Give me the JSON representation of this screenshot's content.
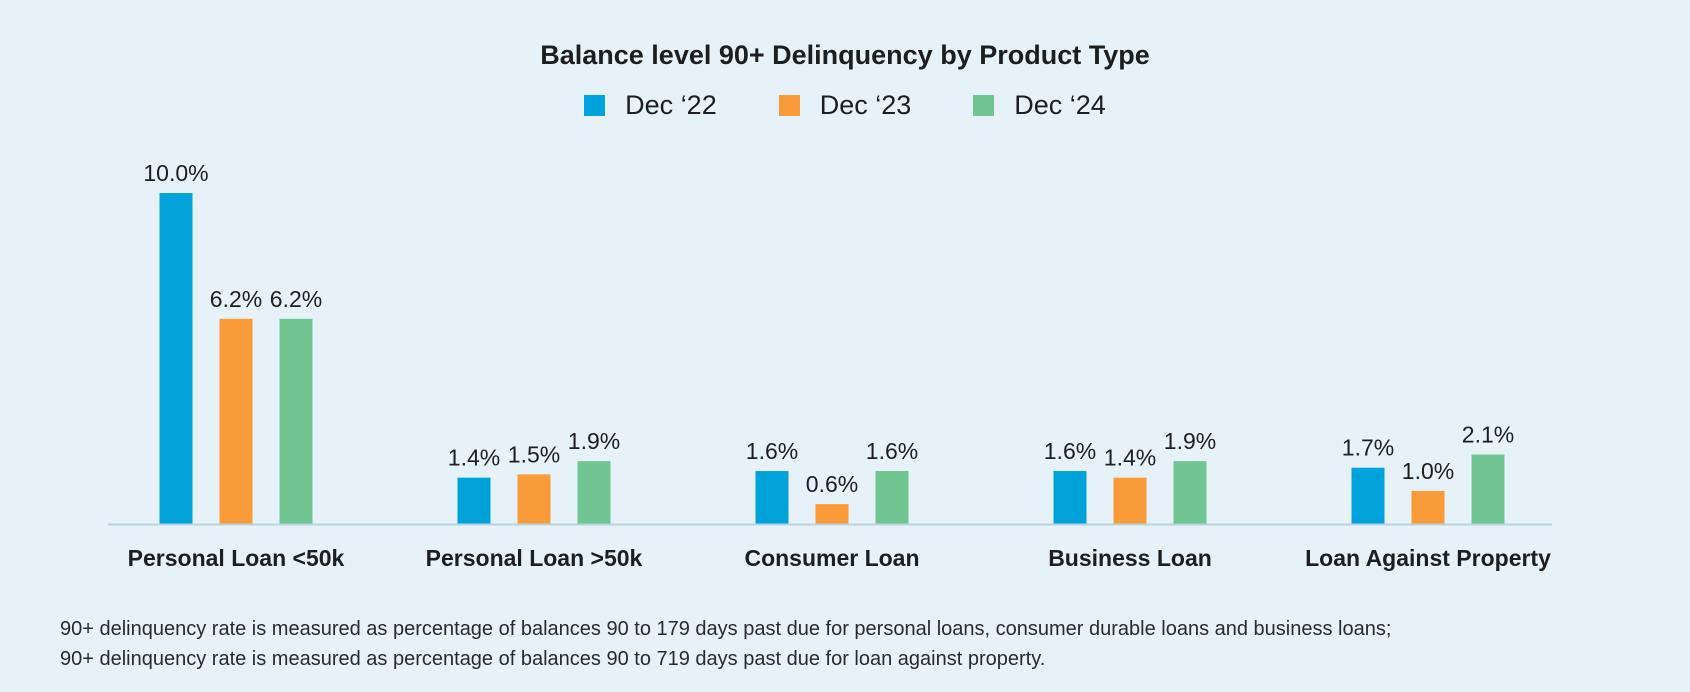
{
  "chart_data": {
    "type": "bar",
    "title": "Balance level 90+ Delinquency by Product Type",
    "xlabel": "",
    "ylabel": "",
    "ylim": [
      0,
      10.0
    ],
    "legend_position": "top-center",
    "grid": false,
    "categories": [
      "Personal Loan <50k",
      "Personal Loan >50k",
      "Consumer Loan",
      "Business Loan",
      "Loan Against Property"
    ],
    "series": [
      {
        "name": "Dec ‘22",
        "color": "#00a3d9",
        "values": [
          10.0,
          1.4,
          1.6,
          1.6,
          1.7
        ],
        "labels": [
          "10.0%",
          "1.4%",
          "1.6%",
          "1.6%",
          "1.7%"
        ]
      },
      {
        "name": "Dec ‘23",
        "color": "#f99b38",
        "values": [
          6.2,
          1.5,
          0.6,
          1.4,
          1.0
        ],
        "labels": [
          "6.2%",
          "1.5%",
          "0.6%",
          "1.4%",
          "1.0%"
        ]
      },
      {
        "name": "Dec ‘24",
        "color": "#70c592",
        "values": [
          6.2,
          1.9,
          1.6,
          1.9,
          2.1
        ],
        "labels": [
          "6.2%",
          "1.9%",
          "1.6%",
          "1.9%",
          "2.1%"
        ]
      }
    ]
  },
  "footnote": {
    "line1": "90+ delinquency rate is measured as percentage of balances 90 to 179 days past due for personal loans, consumer durable loans and business loans;",
    "line2": "90+ delinquency rate is measured as percentage of balances 90 to 719 days past due for loan against property."
  }
}
